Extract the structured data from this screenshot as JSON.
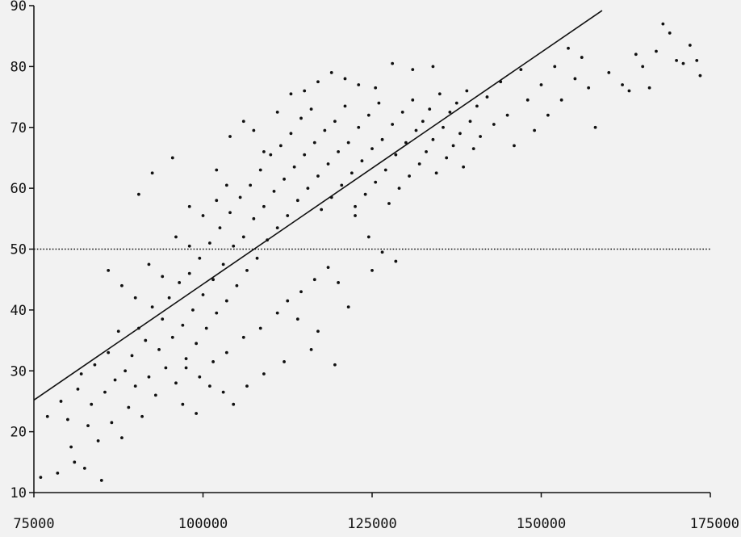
{
  "chart_data": {
    "type": "scatter",
    "title": "",
    "xlabel": "",
    "ylabel": "",
    "xlim": [
      75000,
      175000
    ],
    "ylim": [
      10,
      90
    ],
    "x_ticks": [
      75000,
      100000,
      125000,
      150000,
      175000
    ],
    "y_ticks": [
      10,
      20,
      30,
      40,
      50,
      60,
      70,
      80,
      90
    ],
    "grid": false,
    "reference_line": {
      "y": 50,
      "style": "dotted"
    },
    "fit_line": {
      "x": [
        75000,
        159000
      ],
      "y": [
        25.2,
        89.2
      ]
    },
    "series": [
      {
        "points": [
          [
            76000,
            12.5
          ],
          [
            77000,
            22.5
          ],
          [
            78500,
            13.2
          ],
          [
            79000,
            25.0
          ],
          [
            80000,
            22.0
          ],
          [
            80500,
            17.5
          ],
          [
            81000,
            15.0
          ],
          [
            81500,
            27.0
          ],
          [
            82000,
            29.5
          ],
          [
            82500,
            14.0
          ],
          [
            83000,
            21.0
          ],
          [
            83500,
            24.5
          ],
          [
            84000,
            31.0
          ],
          [
            84500,
            18.5
          ],
          [
            85000,
            12.0
          ],
          [
            85500,
            26.5
          ],
          [
            86000,
            33.0
          ],
          [
            86500,
            21.5
          ],
          [
            87000,
            28.5
          ],
          [
            87500,
            36.5
          ],
          [
            88000,
            19.0
          ],
          [
            88500,
            30.0
          ],
          [
            89000,
            24.0
          ],
          [
            89500,
            32.5
          ],
          [
            90000,
            27.5
          ],
          [
            90500,
            37.0
          ],
          [
            91000,
            22.5
          ],
          [
            91500,
            35.0
          ],
          [
            92000,
            29.0
          ],
          [
            92500,
            40.5
          ],
          [
            93000,
            26.0
          ],
          [
            93500,
            33.5
          ],
          [
            94000,
            38.5
          ],
          [
            94500,
            30.5
          ],
          [
            95000,
            42.0
          ],
          [
            95500,
            35.5
          ],
          [
            96000,
            28.0
          ],
          [
            96500,
            44.5
          ],
          [
            97000,
            37.5
          ],
          [
            97500,
            32.0
          ],
          [
            98000,
            46.0
          ],
          [
            98500,
            40.0
          ],
          [
            99000,
            34.5
          ],
          [
            99500,
            48.5
          ],
          [
            100000,
            42.5
          ],
          [
            100500,
            37.0
          ],
          [
            101000,
            51.0
          ],
          [
            101500,
            45.0
          ],
          [
            102000,
            39.5
          ],
          [
            102500,
            53.5
          ],
          [
            103000,
            47.5
          ],
          [
            103500,
            41.5
          ],
          [
            104000,
            56.0
          ],
          [
            104500,
            50.5
          ],
          [
            105000,
            44.0
          ],
          [
            105500,
            58.5
          ],
          [
            106000,
            52.0
          ],
          [
            106500,
            46.5
          ],
          [
            107000,
            60.5
          ],
          [
            107500,
            55.0
          ],
          [
            108000,
            48.5
          ],
          [
            108500,
            63.0
          ],
          [
            109000,
            57.0
          ],
          [
            109500,
            51.5
          ],
          [
            110000,
            65.5
          ],
          [
            110500,
            59.5
          ],
          [
            111000,
            53.5
          ],
          [
            111500,
            67.0
          ],
          [
            112000,
            61.5
          ],
          [
            112500,
            55.5
          ],
          [
            113000,
            69.0
          ],
          [
            113500,
            63.5
          ],
          [
            114000,
            58.0
          ],
          [
            114500,
            71.5
          ],
          [
            115000,
            65.5
          ],
          [
            115500,
            60.0
          ],
          [
            116000,
            73.0
          ],
          [
            116500,
            67.5
          ],
          [
            117000,
            62.0
          ],
          [
            117500,
            56.5
          ],
          [
            118000,
            69.5
          ],
          [
            118500,
            64.0
          ],
          [
            119000,
            58.5
          ],
          [
            119500,
            71.0
          ],
          [
            120000,
            66.0
          ],
          [
            120500,
            60.5
          ],
          [
            121000,
            73.5
          ],
          [
            121500,
            67.5
          ],
          [
            122000,
            62.5
          ],
          [
            122500,
            57.0
          ],
          [
            123000,
            70.0
          ],
          [
            123500,
            64.5
          ],
          [
            124000,
            59.0
          ],
          [
            124500,
            72.0
          ],
          [
            125000,
            66.5
          ],
          [
            125500,
            61.0
          ],
          [
            126000,
            74.0
          ],
          [
            126500,
            68.0
          ],
          [
            127000,
            63.0
          ],
          [
            127500,
            57.5
          ],
          [
            128000,
            70.5
          ],
          [
            128500,
            65.5
          ],
          [
            129000,
            60.0
          ],
          [
            129500,
            72.5
          ],
          [
            130000,
            67.5
          ],
          [
            130500,
            62.0
          ],
          [
            131000,
            74.5
          ],
          [
            131500,
            69.5
          ],
          [
            132000,
            64.0
          ],
          [
            132500,
            71.0
          ],
          [
            133000,
            66.0
          ],
          [
            133500,
            73.0
          ],
          [
            134000,
            68.0
          ],
          [
            134500,
            62.5
          ],
          [
            135000,
            75.5
          ],
          [
            135500,
            70.0
          ],
          [
            136000,
            65.0
          ],
          [
            136500,
            72.5
          ],
          [
            137000,
            67.0
          ],
          [
            137500,
            74.0
          ],
          [
            138000,
            69.0
          ],
          [
            138500,
            63.5
          ],
          [
            139000,
            76.0
          ],
          [
            139500,
            71.0
          ],
          [
            140000,
            66.5
          ],
          [
            140500,
            73.5
          ],
          [
            141000,
            68.5
          ],
          [
            142000,
            75.0
          ],
          [
            143000,
            70.5
          ],
          [
            144000,
            77.5
          ],
          [
            145000,
            72.0
          ],
          [
            146000,
            67.0
          ],
          [
            147000,
            79.5
          ],
          [
            148000,
            74.5
          ],
          [
            149000,
            69.5
          ],
          [
            150000,
            77.0
          ],
          [
            151000,
            72.0
          ],
          [
            152000,
            80.0
          ],
          [
            153000,
            74.5
          ],
          [
            154000,
            83.0
          ],
          [
            155000,
            78.0
          ],
          [
            156000,
            81.5
          ],
          [
            157000,
            76.5
          ],
          [
            158000,
            70.0
          ],
          [
            160000,
            79.0
          ],
          [
            162000,
            77.0
          ],
          [
            163000,
            76.0
          ],
          [
            164000,
            82.0
          ],
          [
            165000,
            80.0
          ],
          [
            166000,
            76.5
          ],
          [
            167000,
            82.5
          ],
          [
            168000,
            87.0
          ],
          [
            169000,
            85.5
          ],
          [
            170000,
            81.0
          ],
          [
            171000,
            80.5
          ],
          [
            172000,
            83.5
          ],
          [
            173000,
            81.0
          ],
          [
            173500,
            78.5
          ],
          [
            90500,
            59.0
          ],
          [
            92500,
            62.5
          ],
          [
            95500,
            65.0
          ],
          [
            98000,
            57.0
          ],
          [
            102000,
            63.0
          ],
          [
            104000,
            68.5
          ],
          [
            106000,
            71.0
          ],
          [
            107500,
            69.5
          ],
          [
            109000,
            66.0
          ],
          [
            111000,
            72.5
          ],
          [
            113000,
            75.5
          ],
          [
            115000,
            76.0
          ],
          [
            117000,
            77.5
          ],
          [
            119000,
            79.0
          ],
          [
            121000,
            78.0
          ],
          [
            123000,
            77.0
          ],
          [
            125500,
            76.5
          ],
          [
            128000,
            80.5
          ],
          [
            131000,
            79.5
          ],
          [
            134000,
            80.0
          ],
          [
            86000,
            46.5
          ],
          [
            88000,
            44.0
          ],
          [
            90000,
            42.0
          ],
          [
            92000,
            47.5
          ],
          [
            94000,
            45.5
          ],
          [
            96000,
            52.0
          ],
          [
            98000,
            50.5
          ],
          [
            100000,
            55.5
          ],
          [
            102000,
            58.0
          ],
          [
            103500,
            60.5
          ],
          [
            97000,
            24.5
          ],
          [
            99000,
            23.0
          ],
          [
            101000,
            27.5
          ],
          [
            103000,
            26.5
          ],
          [
            104500,
            24.5
          ],
          [
            106500,
            27.5
          ],
          [
            109000,
            29.5
          ],
          [
            112000,
            31.5
          ],
          [
            116000,
            33.5
          ],
          [
            119500,
            31.0
          ],
          [
            121500,
            40.5
          ],
          [
            117000,
            36.5
          ],
          [
            114000,
            38.5
          ],
          [
            111000,
            39.5
          ],
          [
            108500,
            37.0
          ],
          [
            106000,
            35.5
          ],
          [
            103500,
            33.0
          ],
          [
            101500,
            31.5
          ],
          [
            99500,
            29.0
          ],
          [
            97500,
            30.5
          ],
          [
            122500,
            55.5
          ],
          [
            124500,
            52.0
          ],
          [
            126500,
            49.5
          ],
          [
            128500,
            48.0
          ],
          [
            125000,
            46.5
          ],
          [
            120000,
            44.5
          ],
          [
            118500,
            47.0
          ],
          [
            116500,
            45.0
          ],
          [
            114500,
            43.0
          ],
          [
            112500,
            41.5
          ]
        ]
      }
    ]
  }
}
